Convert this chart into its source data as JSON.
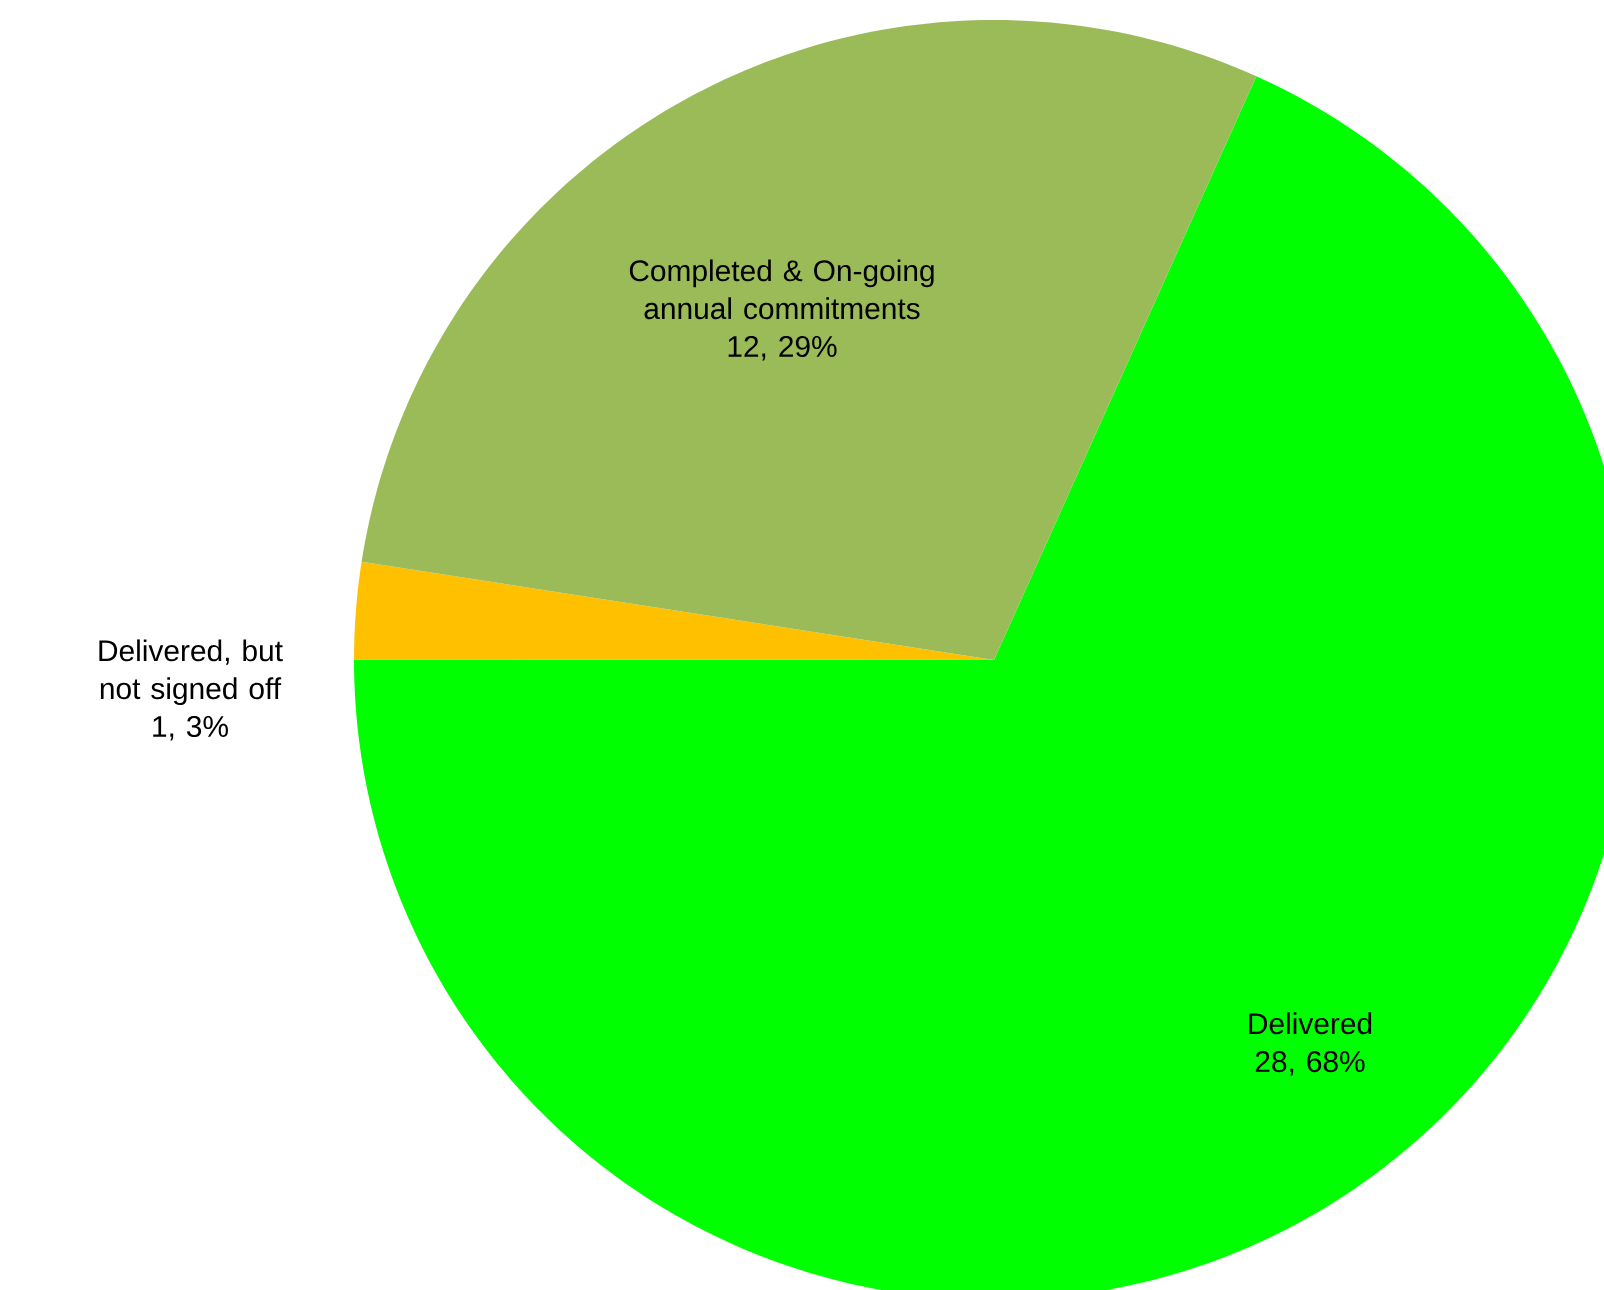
{
  "chart_data": {
    "type": "pie",
    "categories": [
      "Delivered",
      "Delivered, but not signed off",
      "Completed & On-going annual commitments"
    ],
    "values": [
      28,
      1,
      12
    ],
    "colors": [
      "#00ff00",
      "#ffc000",
      "#9bbb59"
    ],
    "value_labels": [
      "28, 68%",
      "1, 3%",
      "12, 29%"
    ]
  }
}
